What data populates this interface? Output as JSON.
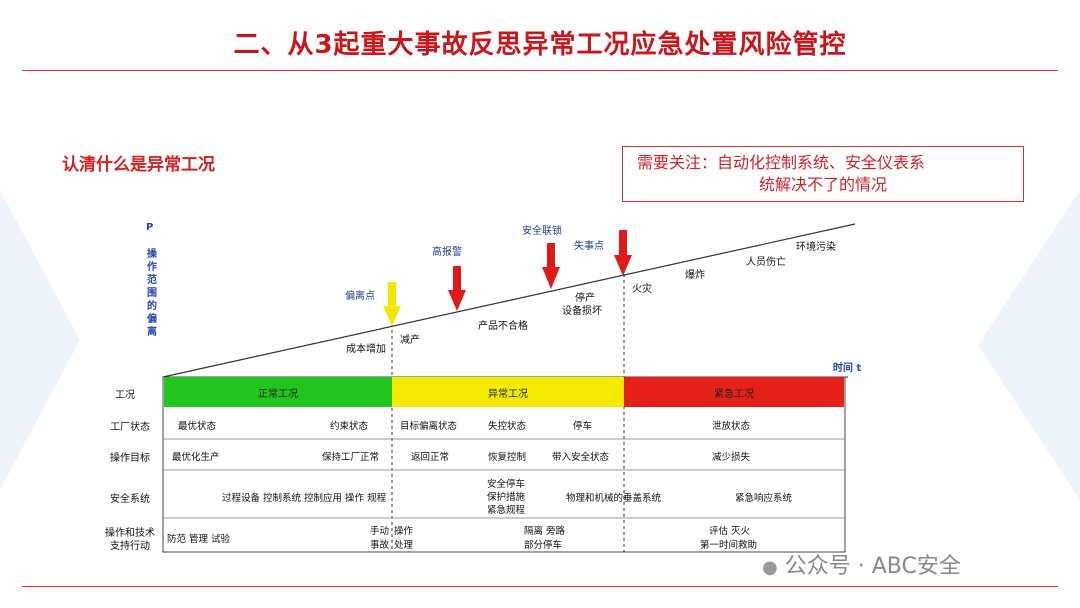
{
  "title": "二、从3起重大事故反思异常工况应急处置风险管控",
  "subtitle": "认清什么是异常工况",
  "note": {
    "line1": "需要关注：自动化控制系统、安全仪表系",
    "line2": "统解决不了的情况"
  },
  "axes": {
    "y_symbol": "P",
    "y_label": "操作范围的偏离",
    "x_label": "时间 t"
  },
  "chart_labels": {
    "cost_increase": "成本增加",
    "reduce_output": "减产",
    "unqualified_product": "产品不合格",
    "shutdown_damage_1": "停产",
    "shutdown_damage_2": "设备损坏",
    "fire": "火灾",
    "explosion": "爆炸",
    "casualties": "人员伤亡",
    "pollution": "环境污染"
  },
  "markers": [
    {
      "label": "偏离点",
      "color": "#f2e600"
    },
    {
      "label": "高报警",
      "color": "#e01a1a"
    },
    {
      "label": "安全联锁",
      "color": "#e01a1a"
    },
    {
      "label": "失事点",
      "color": "#e01a1a"
    }
  ],
  "table": {
    "row_labels": {
      "condition": "工况",
      "plant_state": "工厂状态",
      "op_goal": "操作目标",
      "safety_system": "安全系统",
      "support_1": "操作和技术",
      "support_2": "支持行动"
    },
    "bands": {
      "normal": "正常工况",
      "abnormal": "异常工况",
      "emergency": "紧急工况"
    },
    "band_colors": {
      "normal": "#22c51f",
      "abnormal": "#f2ea00",
      "emergency": "#e5201b"
    },
    "plant_state": {
      "optimal": "最优状态",
      "constrained": "约束状态",
      "target_deviation": "目标偏离状态",
      "out_of_control": "失控状态",
      "stop": "停车",
      "venting": "泄放状态"
    },
    "op_goal": {
      "optimal_production": "最优化生产",
      "keep_normal": "保持工厂正常",
      "return_normal": "返回正常",
      "restore_control": "恢复控制",
      "bring_safe": "带入安全状态",
      "reduce_loss": "减少损失"
    },
    "safety_system": {
      "process": "过程设备 控制系统 控制应用 操作 规程",
      "sis_1": "安全停车",
      "sis_2": "保护措施",
      "sis_3": "紧急规程",
      "mitigation": "物理和机械的垂盖系统",
      "emergency_response": "紧急响应系统"
    },
    "support": {
      "prevent": "防范 管理 试验",
      "manual_1": "手动",
      "manual_2": "事故",
      "op_handle_1": "操作",
      "op_handle_2": "处理",
      "isolate_1": "隔离 旁路",
      "isolate_2": "部分停车",
      "eval_1": "评估 灭火",
      "eval_2": "第一时间救助"
    }
  },
  "watermark": "公众号 · ABC安全"
}
